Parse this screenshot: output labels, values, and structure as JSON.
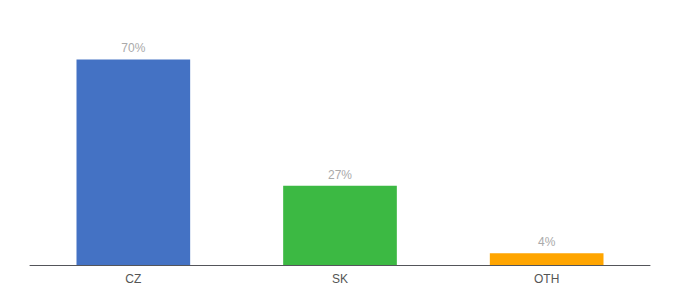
{
  "chart_data": {
    "type": "bar",
    "categories": [
      "CZ",
      "SK",
      "OTH"
    ],
    "values": [
      70,
      27,
      4
    ],
    "value_labels": [
      "70%",
      "27%",
      "4%"
    ],
    "colors": [
      "#4472C4",
      "#3CB943",
      "#FFA500"
    ],
    "ylim": [
      0,
      80
    ],
    "data_labels": true,
    "tick_labels": "x",
    "grid": false
  }
}
